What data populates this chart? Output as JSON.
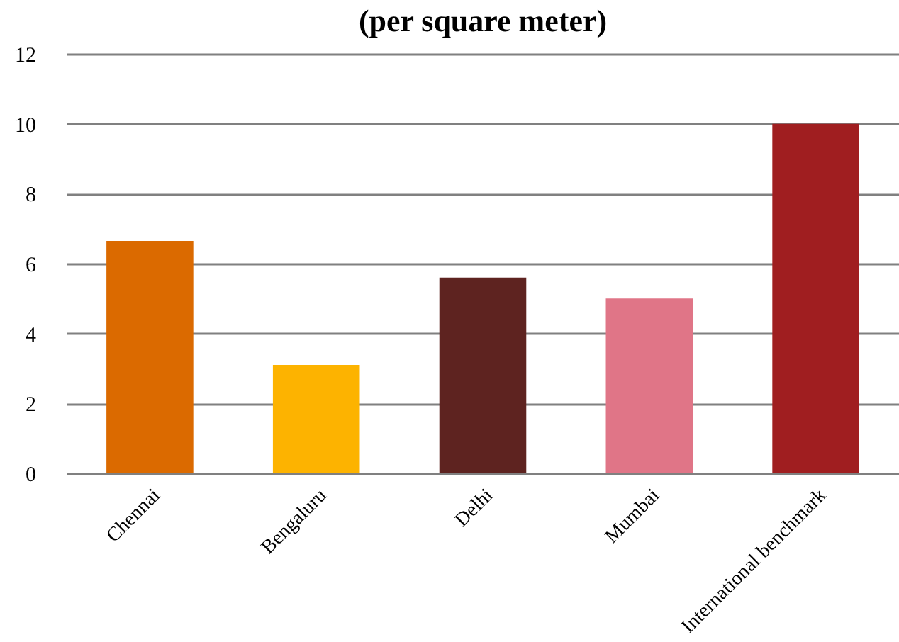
{
  "chart_data": {
    "type": "bar",
    "title": "(per square meter)",
    "categories": [
      "Chennai",
      "Bengaluru",
      "Delhi",
      "Mumbai",
      "International benchmark"
    ],
    "values": [
      6.65,
      3.1,
      5.6,
      5.0,
      10
    ],
    "colors": [
      "#db6a00",
      "#fdb300",
      "#5e2320",
      "#e07587",
      "#a01e20"
    ],
    "ylim": [
      0,
      12
    ],
    "yticks": [
      0,
      2,
      4,
      6,
      8,
      10,
      12
    ],
    "grid": "y",
    "legend": false
  }
}
